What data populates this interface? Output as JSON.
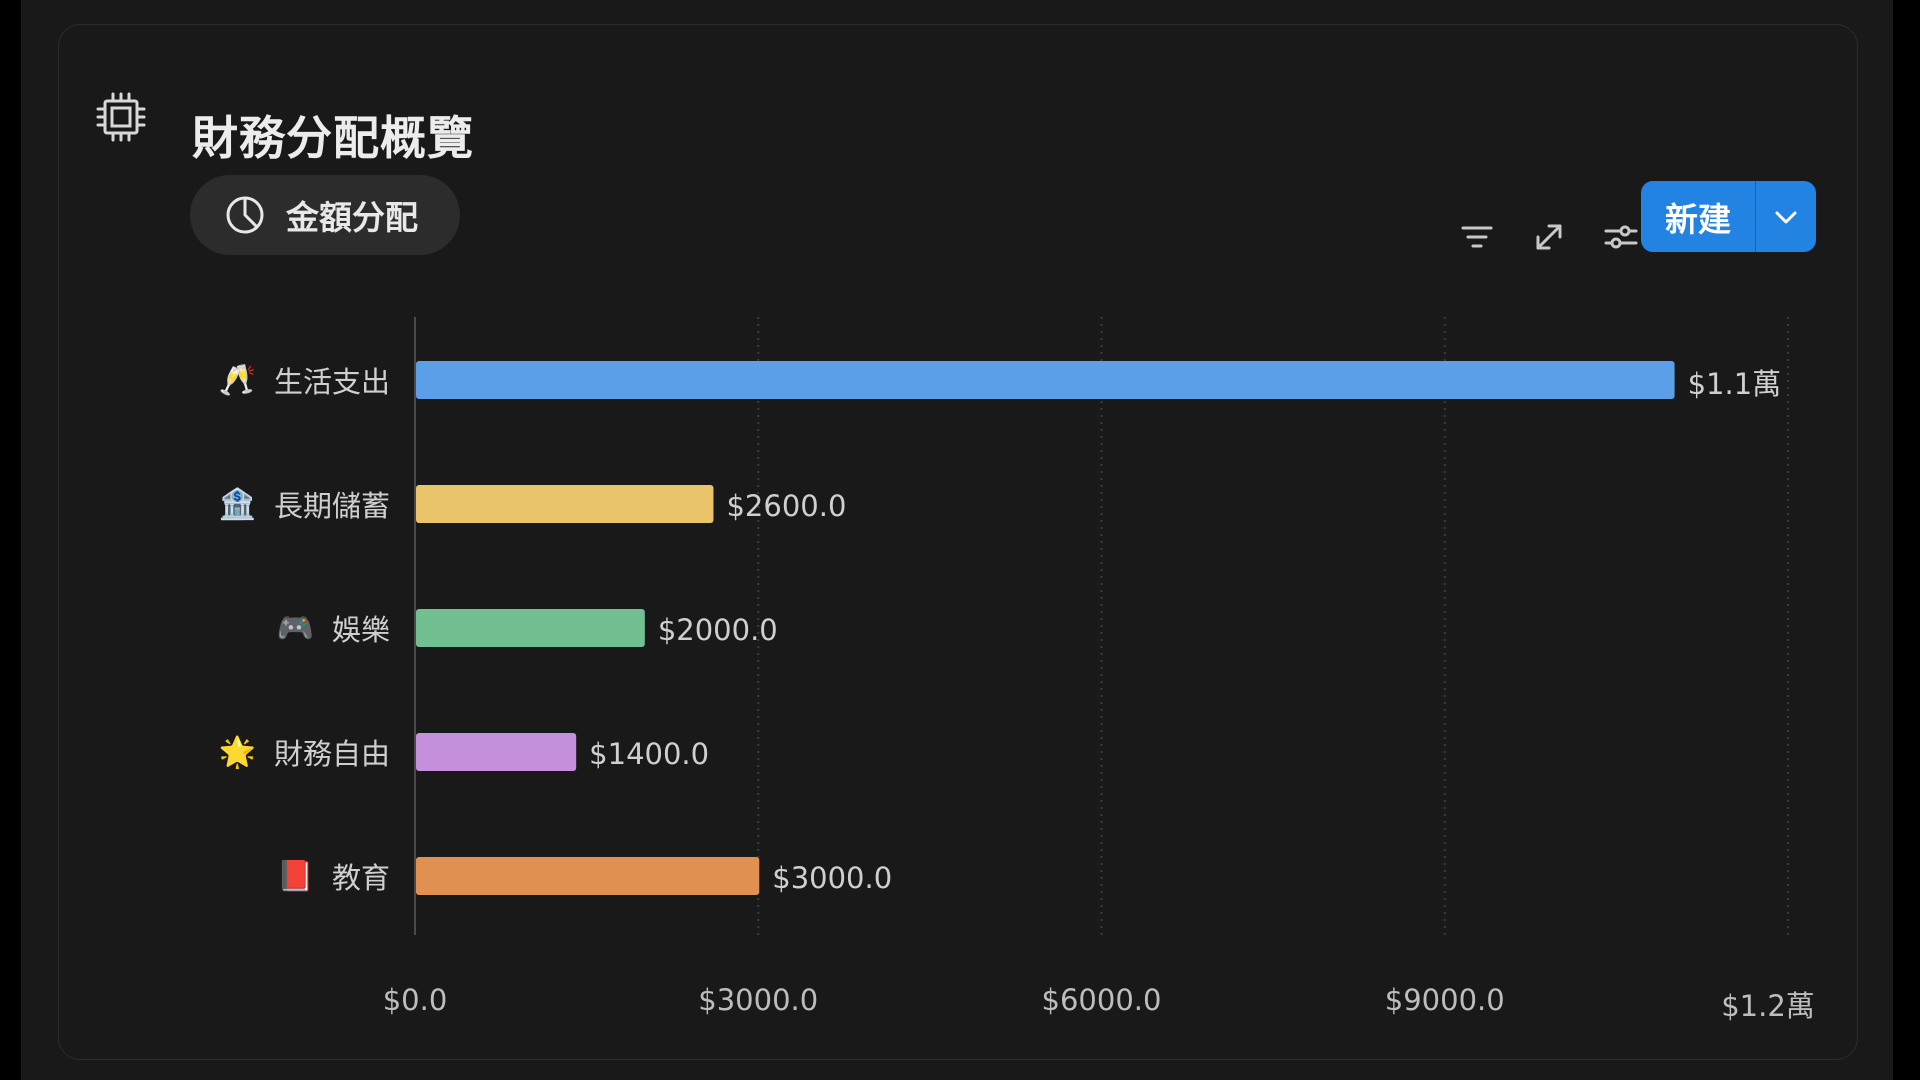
{
  "card": {
    "title": "財務分配概覽",
    "title_icon": "chip-icon"
  },
  "view_tab": {
    "label": "金額分配",
    "icon": "pie-chart-icon"
  },
  "toolbar": {
    "icons": [
      "filter-icon",
      "expand-icon",
      "settings-sliders-icon"
    ],
    "new_label": "新建",
    "new_color": "#2383e2"
  },
  "chart_data": {
    "type": "bar",
    "orientation": "horizontal",
    "categories": [
      {
        "emoji": "🥂",
        "label": "生活支出"
      },
      {
        "emoji": "🏦",
        "label": "長期儲蓄"
      },
      {
        "emoji": "🎮",
        "label": "娛樂"
      },
      {
        "emoji": "🌟",
        "label": "財務自由"
      },
      {
        "emoji": "📕",
        "label": "教育"
      }
    ],
    "values": [
      11000,
      2600,
      2000,
      1400,
      3000
    ],
    "value_labels": [
      "$1.1萬",
      "$2600.0",
      "$2000.0",
      "$1400.0",
      "$3000.0"
    ],
    "colors": [
      "#5b9fe8",
      "#e9c46a",
      "#72bf91",
      "#c490dc",
      "#e09152"
    ],
    "xlim": [
      0,
      12000
    ],
    "xticks": [
      0,
      3000,
      6000,
      9000,
      12000
    ],
    "xtick_labels": [
      "$0.0",
      "$3000.0",
      "$6000.0",
      "$9000.0",
      "$1.2萬"
    ],
    "grid": "vertical-dotted"
  }
}
